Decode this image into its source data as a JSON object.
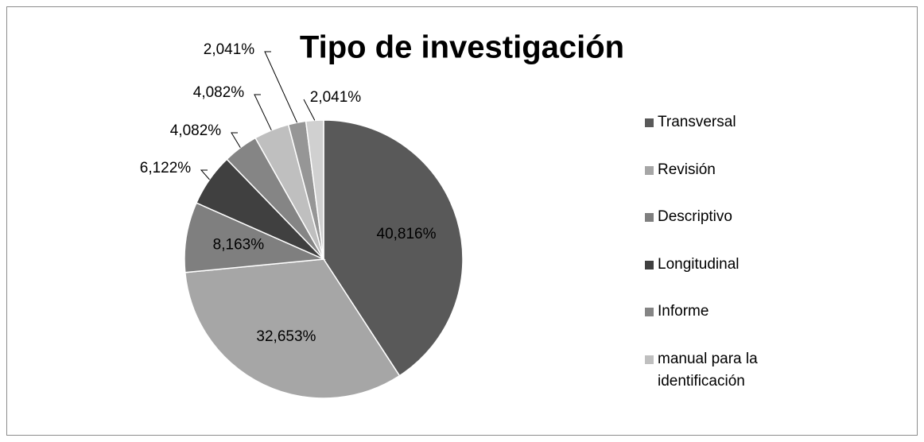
{
  "chart_data": {
    "type": "pie",
    "title": "Tipo de investigación",
    "categories": [
      "Transversal",
      "Revisión",
      "Descriptivo",
      "Longitudinal",
      "Informe",
      "manual para la identificación",
      null,
      null
    ],
    "values": [
      40.816,
      32.653,
      8.163,
      6.122,
      4.082,
      4.082,
      2.041,
      2.041
    ],
    "value_labels": [
      "40,816%",
      "32,653%",
      "8,163%",
      "6,122%",
      "4,082%",
      "4,082%",
      "2,041%",
      "2,041%"
    ],
    "colors": [
      "#595959",
      "#a6a6a6",
      "#7f7f7f",
      "#404040",
      "#858585",
      "#bfbfbf",
      "#969696",
      "#d0d0d0"
    ],
    "legend": "right"
  }
}
